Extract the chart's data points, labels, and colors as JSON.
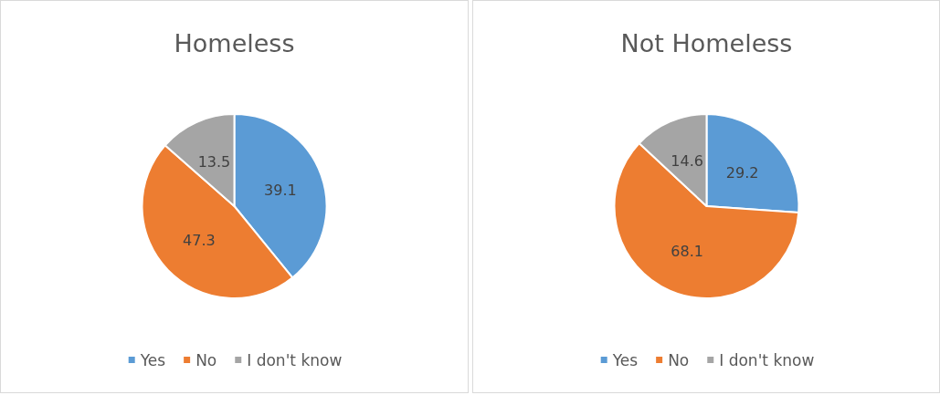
{
  "chart_data": [
    {
      "type": "pie",
      "title": "Homeless",
      "categories": [
        "Yes",
        "No",
        "I don't know"
      ],
      "values": [
        39.1,
        47.3,
        13.5
      ],
      "colors": [
        "#5b9bd5",
        "#ed7d31",
        "#a5a5a5"
      ],
      "data_labels": true,
      "legend": "bottom"
    },
    {
      "type": "pie",
      "title": "Not Homeless",
      "categories": [
        "Yes",
        "No",
        "I don't know"
      ],
      "values": [
        29.2,
        68.1,
        14.6
      ],
      "colors": [
        "#5b9bd5",
        "#ed7d31",
        "#a5a5a5"
      ],
      "data_labels": true,
      "legend": "bottom"
    }
  ]
}
